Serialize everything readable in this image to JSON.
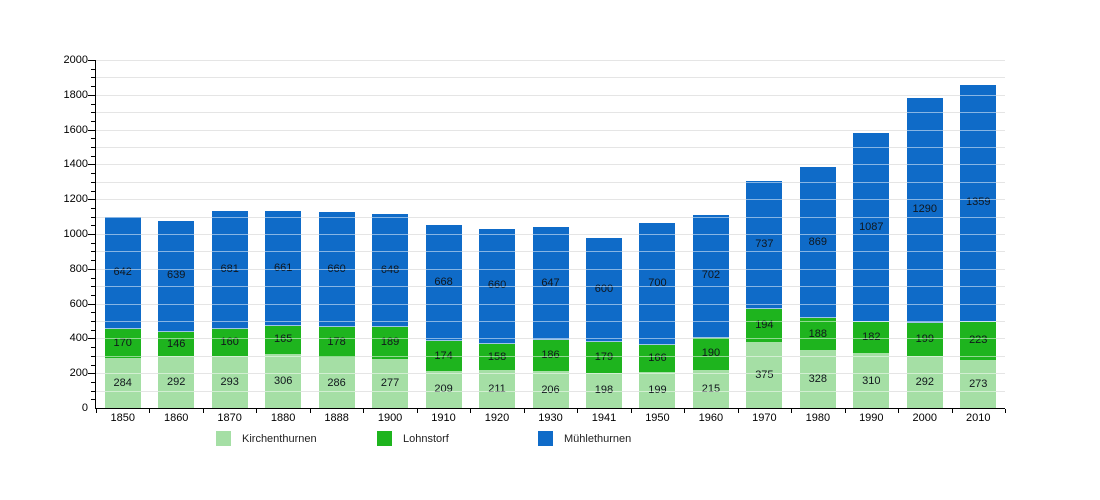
{
  "chart_data": {
    "type": "bar",
    "stacked": true,
    "title": "",
    "xlabel": "",
    "ylabel": "",
    "categories": [
      "1850",
      "1860",
      "1870",
      "1880",
      "1888",
      "1900",
      "1910",
      "1920",
      "1930",
      "1941",
      "1950",
      "1960",
      "1970",
      "1980",
      "1990",
      "2000",
      "2010"
    ],
    "series": [
      {
        "name": "Kirchenthurnen",
        "color": "#a5dfa5",
        "values": [
          284,
          292,
          293,
          306,
          286,
          277,
          209,
          211,
          206,
          198,
          199,
          215,
          375,
          328,
          310,
          292,
          273
        ]
      },
      {
        "name": "Lohnstorf",
        "color": "#1eb41e",
        "values": [
          170,
          146,
          160,
          165,
          178,
          189,
          174,
          158,
          186,
          179,
          166,
          190,
          194,
          188,
          182,
          199,
          223
        ]
      },
      {
        "name": "Mühlethurnen",
        "color": "#0f6bc8",
        "values": [
          642,
          639,
          681,
          661,
          660,
          648,
          668,
          660,
          647,
          600,
          700,
          702,
          737,
          869,
          1087,
          1290,
          1359
        ]
      }
    ],
    "ylim": [
      0,
      2000
    ],
    "yticks": [
      0,
      200,
      400,
      600,
      800,
      1000,
      1200,
      1400,
      1600,
      1800,
      2000
    ],
    "grid_step": 100,
    "minor_tick_step": 50,
    "grid": true,
    "legend_position": "bottom",
    "bar_value_labels": true,
    "colors": {
      "grid": "#cbcbcb",
      "axis": "#000000",
      "value_label": "#10161c",
      "background": "#ffffff"
    }
  }
}
